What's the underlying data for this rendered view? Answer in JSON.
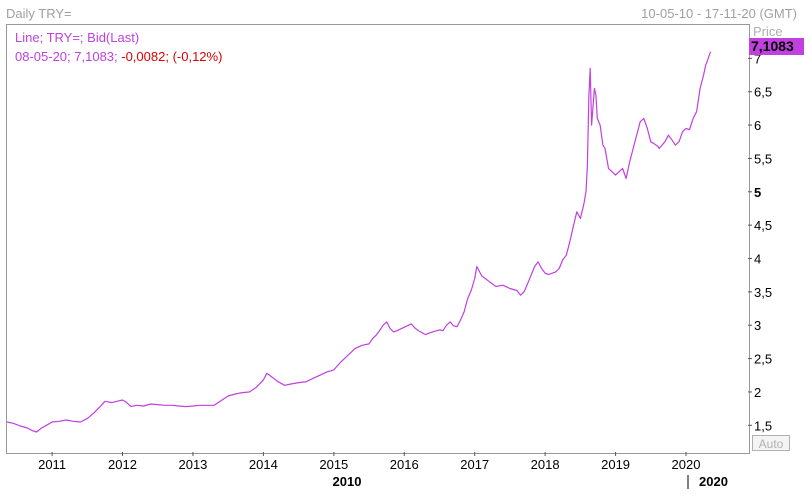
{
  "header": {
    "title": "Daily TRY=",
    "date_range": "10-05-10 - 17-11-20 (GMT)"
  },
  "legend": {
    "line1": "Line; TRY=; Bid(Last)",
    "line2_prefix": "08-05-20; 7,1083; ",
    "line2_change": "-0,0082; (-0,12%)"
  },
  "price_axis": {
    "label": "Price",
    "last_value": "7,1083",
    "auto_button": "Auto"
  },
  "colors": {
    "series": "#c040e0",
    "negative": "#e00000",
    "grid_text": "#000000"
  },
  "chart_data": {
    "type": "line",
    "series": [
      {
        "name": "TRY=",
        "points": [
          [
            2010.36,
            1.55
          ],
          [
            2010.45,
            1.53
          ],
          [
            2010.55,
            1.49
          ],
          [
            2010.65,
            1.46
          ],
          [
            2010.72,
            1.42
          ],
          [
            2010.78,
            1.4
          ],
          [
            2010.85,
            1.46
          ],
          [
            2010.92,
            1.5
          ],
          [
            2011.0,
            1.55
          ],
          [
            2011.1,
            1.56
          ],
          [
            2011.2,
            1.58
          ],
          [
            2011.3,
            1.56
          ],
          [
            2011.4,
            1.55
          ],
          [
            2011.5,
            1.6
          ],
          [
            2011.6,
            1.69
          ],
          [
            2011.7,
            1.8
          ],
          [
            2011.75,
            1.86
          ],
          [
            2011.85,
            1.84
          ],
          [
            2011.92,
            1.86
          ],
          [
            2012.0,
            1.88
          ],
          [
            2012.05,
            1.85
          ],
          [
            2012.12,
            1.78
          ],
          [
            2012.2,
            1.8
          ],
          [
            2012.3,
            1.79
          ],
          [
            2012.4,
            1.82
          ],
          [
            2012.5,
            1.81
          ],
          [
            2012.6,
            1.8
          ],
          [
            2012.7,
            1.8
          ],
          [
            2012.8,
            1.79
          ],
          [
            2012.9,
            1.78
          ],
          [
            2013.0,
            1.79
          ],
          [
            2013.1,
            1.8
          ],
          [
            2013.2,
            1.8
          ],
          [
            2013.3,
            1.8
          ],
          [
            2013.4,
            1.87
          ],
          [
            2013.5,
            1.94
          ],
          [
            2013.6,
            1.97
          ],
          [
            2013.7,
            1.99
          ],
          [
            2013.8,
            2.0
          ],
          [
            2013.9,
            2.07
          ],
          [
            2014.0,
            2.18
          ],
          [
            2014.05,
            2.28
          ],
          [
            2014.1,
            2.24
          ],
          [
            2014.15,
            2.2
          ],
          [
            2014.2,
            2.16
          ],
          [
            2014.3,
            2.1
          ],
          [
            2014.4,
            2.12
          ],
          [
            2014.5,
            2.14
          ],
          [
            2014.6,
            2.15
          ],
          [
            2014.7,
            2.2
          ],
          [
            2014.8,
            2.25
          ],
          [
            2014.9,
            2.3
          ],
          [
            2015.0,
            2.33
          ],
          [
            2015.1,
            2.45
          ],
          [
            2015.2,
            2.55
          ],
          [
            2015.3,
            2.65
          ],
          [
            2015.4,
            2.7
          ],
          [
            2015.5,
            2.72
          ],
          [
            2015.55,
            2.8
          ],
          [
            2015.6,
            2.85
          ],
          [
            2015.65,
            2.92
          ],
          [
            2015.7,
            3.0
          ],
          [
            2015.75,
            3.05
          ],
          [
            2015.8,
            2.95
          ],
          [
            2015.85,
            2.9
          ],
          [
            2015.9,
            2.92
          ],
          [
            2016.0,
            2.97
          ],
          [
            2016.1,
            3.02
          ],
          [
            2016.15,
            2.96
          ],
          [
            2016.2,
            2.92
          ],
          [
            2016.3,
            2.86
          ],
          [
            2016.4,
            2.9
          ],
          [
            2016.5,
            2.93
          ],
          [
            2016.55,
            2.92
          ],
          [
            2016.6,
            3.0
          ],
          [
            2016.65,
            3.05
          ],
          [
            2016.7,
            2.99
          ],
          [
            2016.75,
            2.98
          ],
          [
            2016.8,
            3.08
          ],
          [
            2016.85,
            3.2
          ],
          [
            2016.9,
            3.4
          ],
          [
            2016.95,
            3.52
          ],
          [
            2017.0,
            3.7
          ],
          [
            2017.03,
            3.88
          ],
          [
            2017.1,
            3.74
          ],
          [
            2017.2,
            3.66
          ],
          [
            2017.3,
            3.58
          ],
          [
            2017.4,
            3.6
          ],
          [
            2017.5,
            3.55
          ],
          [
            2017.6,
            3.52
          ],
          [
            2017.65,
            3.45
          ],
          [
            2017.7,
            3.5
          ],
          [
            2017.75,
            3.62
          ],
          [
            2017.8,
            3.75
          ],
          [
            2017.85,
            3.88
          ],
          [
            2017.9,
            3.95
          ],
          [
            2017.95,
            3.85
          ],
          [
            2018.0,
            3.78
          ],
          [
            2018.05,
            3.76
          ],
          [
            2018.1,
            3.78
          ],
          [
            2018.15,
            3.8
          ],
          [
            2018.2,
            3.85
          ],
          [
            2018.25,
            3.98
          ],
          [
            2018.3,
            4.05
          ],
          [
            2018.35,
            4.25
          ],
          [
            2018.4,
            4.48
          ],
          [
            2018.45,
            4.7
          ],
          [
            2018.5,
            4.6
          ],
          [
            2018.55,
            4.82
          ],
          [
            2018.58,
            5.0
          ],
          [
            2018.6,
            5.4
          ],
          [
            2018.62,
            6.4
          ],
          [
            2018.64,
            6.85
          ],
          [
            2018.66,
            6.0
          ],
          [
            2018.7,
            6.55
          ],
          [
            2018.72,
            6.45
          ],
          [
            2018.74,
            6.1
          ],
          [
            2018.78,
            6.0
          ],
          [
            2018.82,
            5.7
          ],
          [
            2018.85,
            5.65
          ],
          [
            2018.9,
            5.35
          ],
          [
            2018.95,
            5.3
          ],
          [
            2019.0,
            5.25
          ],
          [
            2019.1,
            5.35
          ],
          [
            2019.15,
            5.2
          ],
          [
            2019.2,
            5.45
          ],
          [
            2019.25,
            5.65
          ],
          [
            2019.3,
            5.85
          ],
          [
            2019.35,
            6.05
          ],
          [
            2019.4,
            6.1
          ],
          [
            2019.45,
            5.95
          ],
          [
            2019.5,
            5.75
          ],
          [
            2019.55,
            5.72
          ],
          [
            2019.6,
            5.68
          ],
          [
            2019.62,
            5.65
          ],
          [
            2019.7,
            5.75
          ],
          [
            2019.75,
            5.85
          ],
          [
            2019.8,
            5.78
          ],
          [
            2019.85,
            5.7
          ],
          [
            2019.9,
            5.75
          ],
          [
            2019.95,
            5.9
          ],
          [
            2020.0,
            5.95
          ],
          [
            2020.05,
            5.93
          ],
          [
            2020.1,
            6.1
          ],
          [
            2020.15,
            6.2
          ],
          [
            2020.2,
            6.55
          ],
          [
            2020.25,
            6.75
          ],
          [
            2020.28,
            6.9
          ],
          [
            2020.3,
            6.95
          ],
          [
            2020.33,
            7.05
          ],
          [
            2020.35,
            7.1
          ]
        ]
      }
    ],
    "x_ticks": [
      "2011",
      "2012",
      "2013",
      "2014",
      "2015",
      "2016",
      "2017",
      "2018",
      "2019",
      "2020"
    ],
    "x_tick_values": [
      2011,
      2012,
      2013,
      2014,
      2015,
      2016,
      2017,
      2018,
      2019,
      2020
    ],
    "decade_labels": [
      "2010",
      "2020"
    ],
    "y_ticks": [
      "1,5",
      "2",
      "2,5",
      "3",
      "3,5",
      "4",
      "4,5",
      "5",
      "5,5",
      "6",
      "6,5",
      "7"
    ],
    "y_tick_values": [
      1.5,
      2,
      2.5,
      3,
      3.5,
      4,
      4.5,
      5,
      5.5,
      6,
      6.5,
      7
    ],
    "xlim": [
      2010.36,
      2020.88
    ],
    "ylim": [
      1.1,
      7.5
    ],
    "grid": false
  }
}
